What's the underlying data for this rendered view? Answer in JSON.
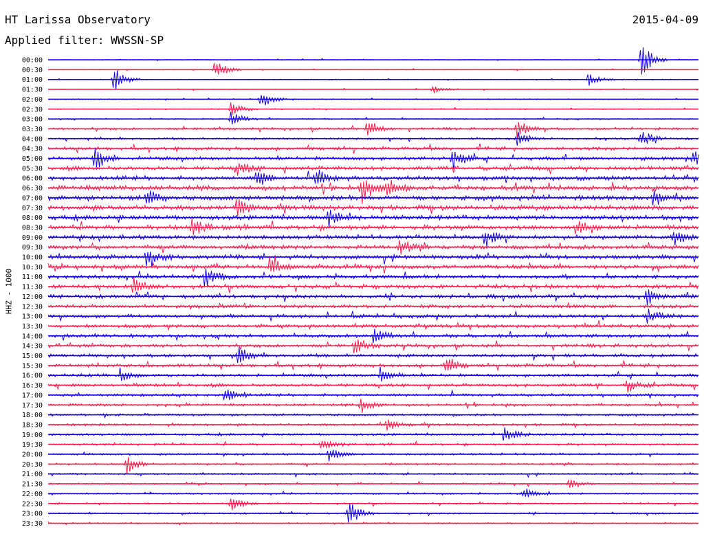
{
  "header": {
    "station": "HT Larissa Observatory",
    "filter": "Applied filter: WWSSN-SP",
    "date": "2015-04-09",
    "channel": "HHZ - 1000"
  },
  "chart_data": {
    "type": "line",
    "title": "HT Larissa Observatory",
    "subtitle": "Applied filter: WWSSN-SP",
    "ylabel": "HHZ - 1000",
    "row_labels": [
      "00:00",
      "00:30",
      "01:00",
      "01:30",
      "02:00",
      "02:30",
      "03:00",
      "03:30",
      "04:00",
      "04:30",
      "05:00",
      "05:30",
      "06:00",
      "06:30",
      "07:00",
      "07:30",
      "08:00",
      "08:30",
      "09:00",
      "09:30",
      "10:00",
      "10:30",
      "11:00",
      "11:30",
      "12:00",
      "12:30",
      "13:00",
      "13:30",
      "14:00",
      "14:30",
      "15:00",
      "15:30",
      "16:00",
      "16:30",
      "17:00",
      "17:30",
      "18:00",
      "18:30",
      "19:00",
      "19:30",
      "20:00",
      "20:30",
      "21:00",
      "21:30",
      "22:00",
      "22:30",
      "23:00",
      "23:30"
    ],
    "colors": {
      "even": "#1400e6",
      "odd": "#ff1a4b"
    },
    "noise_level": [
      0.5,
      0.5,
      0.5,
      0.5,
      0.6,
      0.6,
      0.8,
      1.5,
      1.4,
      2.0,
      2.3,
      2.6,
      2.8,
      3.2,
      3.2,
      3.2,
      3.0,
      3.0,
      2.8,
      2.8,
      2.8,
      2.6,
      2.5,
      2.5,
      2.5,
      2.4,
      2.3,
      2.3,
      2.2,
      2.2,
      2.2,
      2.0,
      2.0,
      2.0,
      1.8,
      1.6,
      1.5,
      1.5,
      1.5,
      1.4,
      1.4,
      1.2,
      1.2,
      1.0,
      1.0,
      1.0,
      1.0,
      0.9
    ],
    "events": [
      {
        "row": 0,
        "t": 0.91,
        "amp": 30
      },
      {
        "row": 1,
        "t": 0.255,
        "amp": 18
      },
      {
        "row": 2,
        "t": 0.1,
        "amp": 20
      },
      {
        "row": 2,
        "t": 0.83,
        "amp": 10
      },
      {
        "row": 3,
        "t": 0.59,
        "amp": 7
      },
      {
        "row": 4,
        "t": 0.325,
        "amp": 16
      },
      {
        "row": 5,
        "t": 0.28,
        "amp": 12
      },
      {
        "row": 6,
        "t": 0.28,
        "amp": 12
      },
      {
        "row": 7,
        "t": 0.49,
        "amp": 16
      },
      {
        "row": 7,
        "t": 0.72,
        "amp": 14
      },
      {
        "row": 8,
        "t": 0.91,
        "amp": 16
      },
      {
        "row": 8,
        "t": 0.72,
        "amp": 12
      },
      {
        "row": 10,
        "t": 0.07,
        "amp": 22
      },
      {
        "row": 10,
        "t": 0.62,
        "amp": 18
      },
      {
        "row": 10,
        "t": 0.99,
        "amp": 14
      },
      {
        "row": 11,
        "t": 0.29,
        "amp": 12
      },
      {
        "row": 12,
        "t": 0.41,
        "amp": 16
      },
      {
        "row": 12,
        "t": 0.32,
        "amp": 14
      },
      {
        "row": 13,
        "t": 0.48,
        "amp": 22
      },
      {
        "row": 13,
        "t": 0.52,
        "amp": 18
      },
      {
        "row": 14,
        "t": 0.15,
        "amp": 14
      },
      {
        "row": 14,
        "t": 0.93,
        "amp": 14
      },
      {
        "row": 15,
        "t": 0.29,
        "amp": 14
      },
      {
        "row": 16,
        "t": 0.43,
        "amp": 14
      },
      {
        "row": 17,
        "t": 0.22,
        "amp": 14
      },
      {
        "row": 17,
        "t": 0.81,
        "amp": 12
      },
      {
        "row": 18,
        "t": 0.67,
        "amp": 16
      },
      {
        "row": 18,
        "t": 0.96,
        "amp": 14
      },
      {
        "row": 19,
        "t": 0.54,
        "amp": 12
      },
      {
        "row": 20,
        "t": 0.15,
        "amp": 14
      },
      {
        "row": 21,
        "t": 0.34,
        "amp": 14
      },
      {
        "row": 22,
        "t": 0.24,
        "amp": 16
      },
      {
        "row": 23,
        "t": 0.13,
        "amp": 14
      },
      {
        "row": 24,
        "t": 0.92,
        "amp": 14
      },
      {
        "row": 26,
        "t": 0.92,
        "amp": 14
      },
      {
        "row": 28,
        "t": 0.5,
        "amp": 12
      },
      {
        "row": 29,
        "t": 0.47,
        "amp": 12
      },
      {
        "row": 30,
        "t": 0.29,
        "amp": 14
      },
      {
        "row": 31,
        "t": 0.61,
        "amp": 12
      },
      {
        "row": 32,
        "t": 0.11,
        "amp": 10
      },
      {
        "row": 32,
        "t": 0.51,
        "amp": 12
      },
      {
        "row": 33,
        "t": 0.89,
        "amp": 10
      },
      {
        "row": 34,
        "t": 0.27,
        "amp": 18
      },
      {
        "row": 35,
        "t": 0.48,
        "amp": 14
      },
      {
        "row": 37,
        "t": 0.52,
        "amp": 10
      },
      {
        "row": 38,
        "t": 0.7,
        "amp": 16
      },
      {
        "row": 39,
        "t": 0.42,
        "amp": 10
      },
      {
        "row": 40,
        "t": 0.43,
        "amp": 12
      },
      {
        "row": 41,
        "t": 0.12,
        "amp": 16
      },
      {
        "row": 43,
        "t": 0.8,
        "amp": 8
      },
      {
        "row": 44,
        "t": 0.73,
        "amp": 10
      },
      {
        "row": 45,
        "t": 0.28,
        "amp": 14
      },
      {
        "row": 46,
        "t": 0.46,
        "amp": 22
      }
    ]
  }
}
